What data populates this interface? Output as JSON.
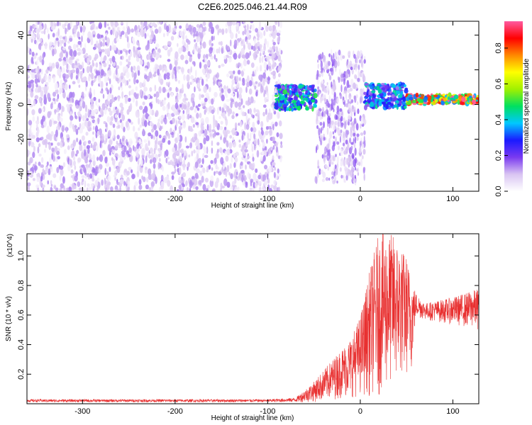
{
  "figure": {
    "title": "C2E6.2025.046.21.44.R09"
  },
  "chart_data": [
    {
      "type": "heatmap",
      "xlabel": "Height of straight line (km)",
      "ylabel": "Frequency (Hz)",
      "xlim": [
        -360,
        128
      ],
      "ylim": [
        -50,
        48
      ],
      "xticks": [
        -300,
        -200,
        -100,
        0,
        100
      ],
      "yticks": [
        -40,
        -20,
        0,
        20,
        40
      ],
      "colorbar": {
        "label": "Normalized spectral amplitude",
        "range": [
          0,
          0.95
        ],
        "ticks": [
          0.0,
          0.2,
          0.4,
          0.6,
          0.8
        ],
        "colors": [
          "#ffffff",
          "#d9c4f2",
          "#7a3af0",
          "#1a1aff",
          "#00c8ff",
          "#00e060",
          "#a0f000",
          "#ffff00",
          "#ff8800",
          "#ff0000",
          "#ff5aa0"
        ]
      },
      "regions": [
        {
          "x_range": [
            -360,
            -85
          ],
          "freq_range": [
            -50,
            48
          ],
          "amplitude": 0.1
        },
        {
          "x_range": [
            -92,
            -48
          ],
          "freq_center": 4,
          "amplitude": 0.4
        },
        {
          "x_range": [
            -48,
            5
          ],
          "freq_range": [
            -45,
            30
          ],
          "amplitude": 0.12
        },
        {
          "x_range": [
            5,
            50
          ],
          "freq_center": 5,
          "amplitude": 0.35
        },
        {
          "x_range": [
            50,
            128
          ],
          "freq_center": 3,
          "amplitude": 0.8
        }
      ]
    },
    {
      "type": "line",
      "xlabel": "Height of straight line (km)",
      "ylabel": "SNR (10 * v/v)",
      "scale_label": "(x10^4)",
      "xlim": [
        -360,
        128
      ],
      "ylim": [
        0,
        1.15
      ],
      "xticks": [
        -300,
        -200,
        -100,
        0,
        100
      ],
      "yticks": [
        0.2,
        0.4,
        0.6,
        0.8,
        1.0
      ],
      "color": "#e83030",
      "envelope": [
        {
          "x": -360,
          "y": 0.03
        },
        {
          "x": -100,
          "y": 0.03
        },
        {
          "x": -70,
          "y": 0.04
        },
        {
          "x": -50,
          "y": 0.15
        },
        {
          "x": -30,
          "y": 0.3
        },
        {
          "x": -10,
          "y": 0.45
        },
        {
          "x": 0,
          "y": 0.6
        },
        {
          "x": 10,
          "y": 0.9
        },
        {
          "x": 20,
          "y": 1.15
        },
        {
          "x": 35,
          "y": 1.15
        },
        {
          "x": 50,
          "y": 1.0
        },
        {
          "x": 60,
          "y": 0.75
        },
        {
          "x": 70,
          "y": 0.68
        },
        {
          "x": 100,
          "y": 0.72
        },
        {
          "x": 128,
          "y": 0.78
        }
      ],
      "baseline": [
        {
          "x": -360,
          "y": 0.01
        },
        {
          "x": -50,
          "y": 0.01
        },
        {
          "x": 0,
          "y": 0.05
        },
        {
          "x": 20,
          "y": 0.05
        },
        {
          "x": 55,
          "y": 0.2
        },
        {
          "x": 60,
          "y": 0.58
        },
        {
          "x": 128,
          "y": 0.5
        }
      ]
    }
  ]
}
